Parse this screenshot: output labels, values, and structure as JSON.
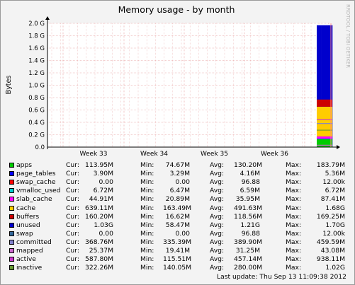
{
  "chart_data": {
    "type": "area",
    "title": "Memory usage - by month",
    "ylabel": "Bytes",
    "watermark": "RRDTOOL / TOBI OETIKER",
    "ylim": [
      0,
      2.0
    ],
    "y_unit": "G",
    "y_ticks": [
      "0.0",
      "0.2 G",
      "0.4 G",
      "0.6 G",
      "0.8 G",
      "1.0 G",
      "1.2 G",
      "1.4 G",
      "1.6 G",
      "1.8 G",
      "2.0 G"
    ],
    "x_ticks": [
      "Week 33",
      "Week 34",
      "Week 35",
      "Week 36"
    ],
    "grid": true,
    "stats_labels": {
      "cur": "Cur:",
      "min": "Min:",
      "avg": "Avg:",
      "max": "Max:"
    },
    "series": [
      {
        "name": "apps",
        "color": "#00cc00",
        "cur": "113.95M",
        "min": "74.67M",
        "avg": "130.20M",
        "max": "183.79M"
      },
      {
        "name": "page_tables",
        "color": "#0000ff",
        "cur": "3.90M",
        "min": "3.29M",
        "avg": "4.16M",
        "max": "5.36M"
      },
      {
        "name": "swap_cache",
        "color": "#ff0000",
        "cur": "0.00",
        "min": "0.00",
        "avg": "96.88",
        "max": "12.00k"
      },
      {
        "name": "vmalloc_used",
        "color": "#00cccc",
        "cur": "6.72M",
        "min": "6.47M",
        "avg": "6.59M",
        "max": "6.72M"
      },
      {
        "name": "slab_cache",
        "color": "#ff00ff",
        "cur": "44.91M",
        "min": "20.89M",
        "avg": "35.95M",
        "max": "87.41M"
      },
      {
        "name": "cache",
        "color": "#ffcc00",
        "cur": "639.11M",
        "min": "163.49M",
        "avg": "491.63M",
        "max": "1.68G"
      },
      {
        "name": "buffers",
        "color": "#cc0000",
        "cur": "160.20M",
        "min": "16.62M",
        "avg": "118.56M",
        "max": "169.25M"
      },
      {
        "name": "unused",
        "color": "#0000cc",
        "cur": "1.03G",
        "min": "58.47M",
        "avg": "1.21G",
        "max": "1.70G"
      },
      {
        "name": "swap",
        "color": "#336699",
        "cur": "0.00",
        "min": "0.00",
        "avg": "96.88",
        "max": "12.00k"
      },
      {
        "name": "committed",
        "color": "#8080cc",
        "cur": "368.76M",
        "min": "335.39M",
        "avg": "389.90M",
        "max": "459.59M"
      },
      {
        "name": "mapped",
        "color": "#cc66cc",
        "cur": "25.37M",
        "min": "19.41M",
        "avg": "31.25M",
        "max": "43.08M"
      },
      {
        "name": "active",
        "color": "#cc33cc",
        "cur": "587.80M",
        "min": "115.51M",
        "avg": "457.14M",
        "max": "938.11M"
      },
      {
        "name": "inactive",
        "color": "#669933",
        "cur": "322.26M",
        "min": "140.05M",
        "avg": "280.00M",
        "max": "1.02G"
      }
    ],
    "stacked_total_recent": [
      1.97,
      1.97,
      1.97,
      1.97,
      1.97,
      1.97,
      1.97,
      1.97,
      1.97,
      1.97
    ]
  },
  "last_update": "Last update: Thu Sep 13 11:09:38 2012"
}
